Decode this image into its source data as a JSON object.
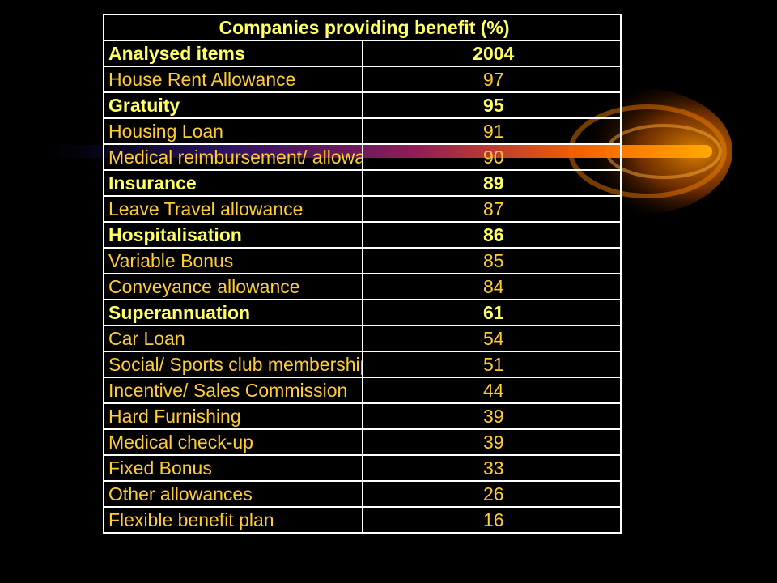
{
  "chart_data": {
    "type": "table",
    "title": "Companies providing benefit (%)",
    "columns": [
      "Analysed items",
      "2004"
    ],
    "rows": [
      {
        "item": "House Rent Allowance",
        "value": "97",
        "bold": false
      },
      {
        "item": "Gratuity",
        "value": "95",
        "bold": true
      },
      {
        "item": "Housing Loan",
        "value": "91",
        "bold": false
      },
      {
        "item": "Medical reimbursement/ allowance",
        "value": "90",
        "bold": false
      },
      {
        "item": "Insurance",
        "value": "89",
        "bold": true
      },
      {
        "item": "Leave Travel allowance",
        "value": "87",
        "bold": false
      },
      {
        "item": "Hospitalisation",
        "value": "86",
        "bold": true
      },
      {
        "item": "Variable Bonus",
        "value": "85",
        "bold": false
      },
      {
        "item": "Conveyance allowance",
        "value": "84",
        "bold": false
      },
      {
        "item": "Superannuation",
        "value": "61",
        "bold": true
      },
      {
        "item": "Car Loan",
        "value": "54",
        "bold": false
      },
      {
        "item": "Social/ Sports club membership",
        "value": "51",
        "bold": false
      },
      {
        "item": "Incentive/ Sales Commission",
        "value": "44",
        "bold": false
      },
      {
        "item": "Hard Furnishing",
        "value": "39",
        "bold": false
      },
      {
        "item": "Medical check-up",
        "value": "39",
        "bold": false
      },
      {
        "item": "Fixed Bonus",
        "value": "33",
        "bold": false
      },
      {
        "item": "Other allowances",
        "value": "26",
        "bold": false
      },
      {
        "item": "Flexible benefit plan",
        "value": "16",
        "bold": false
      }
    ]
  },
  "colors": {
    "background": "#000000",
    "border": "#ffffff",
    "text_header": "#ffff66",
    "text_normal": "#ffcc33",
    "text_bold": "#ffff66",
    "glow": "#ff9900"
  }
}
